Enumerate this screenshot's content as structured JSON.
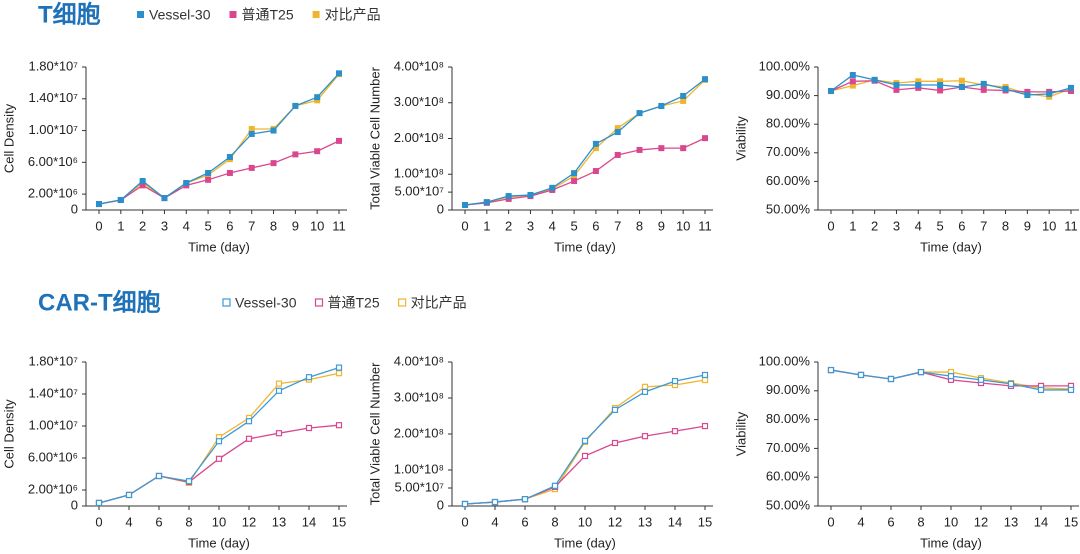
{
  "chart_data": [
    {
      "type": "line",
      "title": "T细胞",
      "marker_filled": true,
      "series": [
        {
          "name": "Vessel-30",
          "color": "#2b8fcc"
        },
        {
          "name": "普通T25",
          "color": "#d9488f"
        },
        {
          "name": "对比产品",
          "color": "#f0b52c"
        }
      ],
      "panels": [
        {
          "ylabel": "Cell Density",
          "xlabel": "Time (day)",
          "categories": [
            0,
            1,
            2,
            3,
            4,
            5,
            6,
            7,
            8,
            9,
            10,
            11
          ],
          "ylim": [
            0,
            18000000
          ],
          "yticks": [
            0,
            {
              "value": 2000000,
              "label": "2.00*10⁶"
            },
            {
              "value": 6000000,
              "label": "6.00*10⁶"
            },
            {
              "value": 10000000,
              "label": "1.00*10⁷"
            },
            {
              "value": 14000000,
              "label": "1.40*10⁷"
            },
            {
              "value": 18000000,
              "label": "1.80*10⁷"
            }
          ],
          "series": [
            {
              "values": [
                750000,
                1260000,
                3650000,
                1500000,
                3400000,
                4660000,
                6670000,
                9570000,
                10000000,
                13100000,
                14200000,
                17200000
              ]
            },
            {
              "values": [
                750000,
                1260000,
                3100000,
                1500000,
                3100000,
                3800000,
                4660000,
                5300000,
                5900000,
                7000000,
                7400000,
                8700000
              ]
            },
            {
              "values": [
                750000,
                1260000,
                3400000,
                1500000,
                3400000,
                4400000,
                6400000,
                10200000,
                10200000,
                13100000,
                13800000,
                17100000
              ]
            }
          ]
        },
        {
          "ylabel": "Total Viable Cell Number",
          "xlabel": "Time (day)",
          "categories": [
            0,
            1,
            2,
            3,
            4,
            5,
            6,
            7,
            8,
            9,
            10,
            11
          ],
          "ylim": [
            0,
            400000000
          ],
          "yticks": [
            0,
            {
              "value": 50000000,
              "label": "5.00*10⁷"
            },
            {
              "value": 100000000,
              "label": "1.00*10⁸"
            },
            {
              "value": 200000000,
              "label": "2.00*10⁸"
            },
            {
              "value": 300000000,
              "label": "3.00*10⁸"
            },
            {
              "value": 400000000,
              "label": "4.00*10⁸"
            }
          ],
          "series": [
            {
              "values": [
                14000000,
                22000000,
                39000000,
                42000000,
                62000000,
                103000000,
                185000000,
                218000000,
                271000000,
                291000000,
                319000000,
                366000000
              ]
            },
            {
              "values": [
                14000000,
                20000000,
                31000000,
                39000000,
                56000000,
                81000000,
                109000000,
                154000000,
                168000000,
                173000000,
                173000000,
                201000000
              ]
            },
            {
              "values": [
                14000000,
                22000000,
                36000000,
                42000000,
                59000000,
                95000000,
                173000000,
                229000000,
                271000000,
                291000000,
                305000000,
                364000000
              ]
            }
          ]
        },
        {
          "ylabel": "Viability",
          "xlabel": "Time (day)",
          "categories": [
            0,
            1,
            2,
            3,
            4,
            5,
            6,
            7,
            8,
            9,
            10,
            11
          ],
          "ylim": [
            50,
            100
          ],
          "yticks": [
            {
              "value": 50,
              "label": "50.00%"
            },
            {
              "value": 60,
              "label": "60.00%"
            },
            {
              "value": 70,
              "label": "70.00%"
            },
            {
              "value": 80,
              "label": "80.00%"
            },
            {
              "value": 90,
              "label": "90.00%"
            },
            {
              "value": 100,
              "label": "100.00%"
            }
          ],
          "series": [
            {
              "values": [
                91.6,
                97.2,
                95.5,
                93.7,
                93.7,
                93.7,
                93.0,
                94.1,
                92.3,
                90.2,
                90.6,
                92.7
              ]
            },
            {
              "values": [
                91.6,
                95.0,
                95.2,
                92.0,
                92.7,
                91.8,
                93.0,
                92.0,
                91.8,
                91.3,
                91.3,
                91.6
              ]
            },
            {
              "values": [
                91.6,
                93.5,
                95.5,
                94.4,
                95.0,
                95.0,
                95.2,
                93.7,
                93.0,
                90.6,
                89.6,
                92.4
              ]
            }
          ]
        }
      ]
    },
    {
      "type": "line",
      "title": "CAR-T细胞",
      "marker_filled": false,
      "series": [
        {
          "name": "Vessel-30",
          "color": "#3d9ad6"
        },
        {
          "name": "普通T25",
          "color": "#d9488f"
        },
        {
          "name": "对比产品",
          "color": "#f0b52c"
        }
      ],
      "panels": [
        {
          "ylabel": "Cell Density",
          "xlabel": "Time (day)",
          "categories": [
            0,
            4,
            6,
            8,
            10,
            12,
            13,
            14,
            15
          ],
          "ylim": [
            0,
            18000000
          ],
          "yticks": [
            0,
            {
              "value": 2000000,
              "label": "2.00*10⁶"
            },
            {
              "value": 6000000,
              "label": "6.00*10⁶"
            },
            {
              "value": 10000000,
              "label": "1.00*10⁷"
            },
            {
              "value": 14000000,
              "label": "1.40*10⁷"
            },
            {
              "value": 18000000,
              "label": "1.80*10⁷"
            }
          ],
          "series": [
            {
              "values": [
                380000,
                1380000,
                3750000,
                3100000,
                8100000,
                10600000,
                14400000,
                16100000,
                17300000
              ]
            },
            {
              "values": [
                380000,
                1380000,
                3750000,
                3000000,
                5900000,
                8400000,
                9100000,
                9750000,
                10100000
              ]
            },
            {
              "values": [
                380000,
                1380000,
                3750000,
                2900000,
                8600000,
                11000000,
                15300000,
                15800000,
                16600000
              ]
            }
          ]
        },
        {
          "ylabel": "Total Viable Cell Number",
          "xlabel": "Time (day)",
          "categories": [
            0,
            4,
            6,
            8,
            10,
            12,
            13,
            14,
            15
          ],
          "ylim": [
            0,
            400000000
          ],
          "yticks": [
            0,
            {
              "value": 50000000,
              "label": "5.00*10⁷"
            },
            {
              "value": 100000000,
              "label": "1.00*10⁸"
            },
            {
              "value": 200000000,
              "label": "2.00*10⁸"
            },
            {
              "value": 300000000,
              "label": "3.00*10⁸"
            },
            {
              "value": 400000000,
              "label": "4.00*10⁸"
            }
          ],
          "series": [
            {
              "values": [
                5600000,
                11000000,
                19000000,
                56000000,
                181000000,
                267000000,
                317000000,
                347000000,
                364000000
              ]
            },
            {
              "values": [
                5600000,
                11000000,
                19000000,
                53000000,
                139000000,
                175000000,
                194000000,
                208000000,
                222000000
              ]
            },
            {
              "values": [
                5600000,
                11000000,
                19000000,
                47000000,
                178000000,
                272000000,
                331000000,
                336000000,
                350000000
              ]
            }
          ]
        },
        {
          "ylabel": "Viability",
          "xlabel": "Time (day)",
          "categories": [
            0,
            4,
            6,
            8,
            10,
            12,
            13,
            14,
            15
          ],
          "ylim": [
            50,
            100
          ],
          "yticks": [
            {
              "value": 50,
              "label": "50.00%"
            },
            {
              "value": 60,
              "label": "60.00%"
            },
            {
              "value": 70,
              "label": "70.00%"
            },
            {
              "value": 80,
              "label": "80.00%"
            },
            {
              "value": 90,
              "label": "90.00%"
            },
            {
              "value": 100,
              "label": "100.00%"
            }
          ],
          "series": [
            {
              "values": [
                97.2,
                95.5,
                94.1,
                96.5,
                95.1,
                93.8,
                92.4,
                90.3,
                90.3
              ]
            },
            {
              "values": [
                97.2,
                95.5,
                94.1,
                96.5,
                93.8,
                92.7,
                91.7,
                91.7,
                91.7
              ]
            },
            {
              "values": [
                97.2,
                95.5,
                94.1,
                96.5,
                96.5,
                94.4,
                92.7,
                91.0,
                90.6
              ]
            }
          ]
        }
      ]
    }
  ]
}
